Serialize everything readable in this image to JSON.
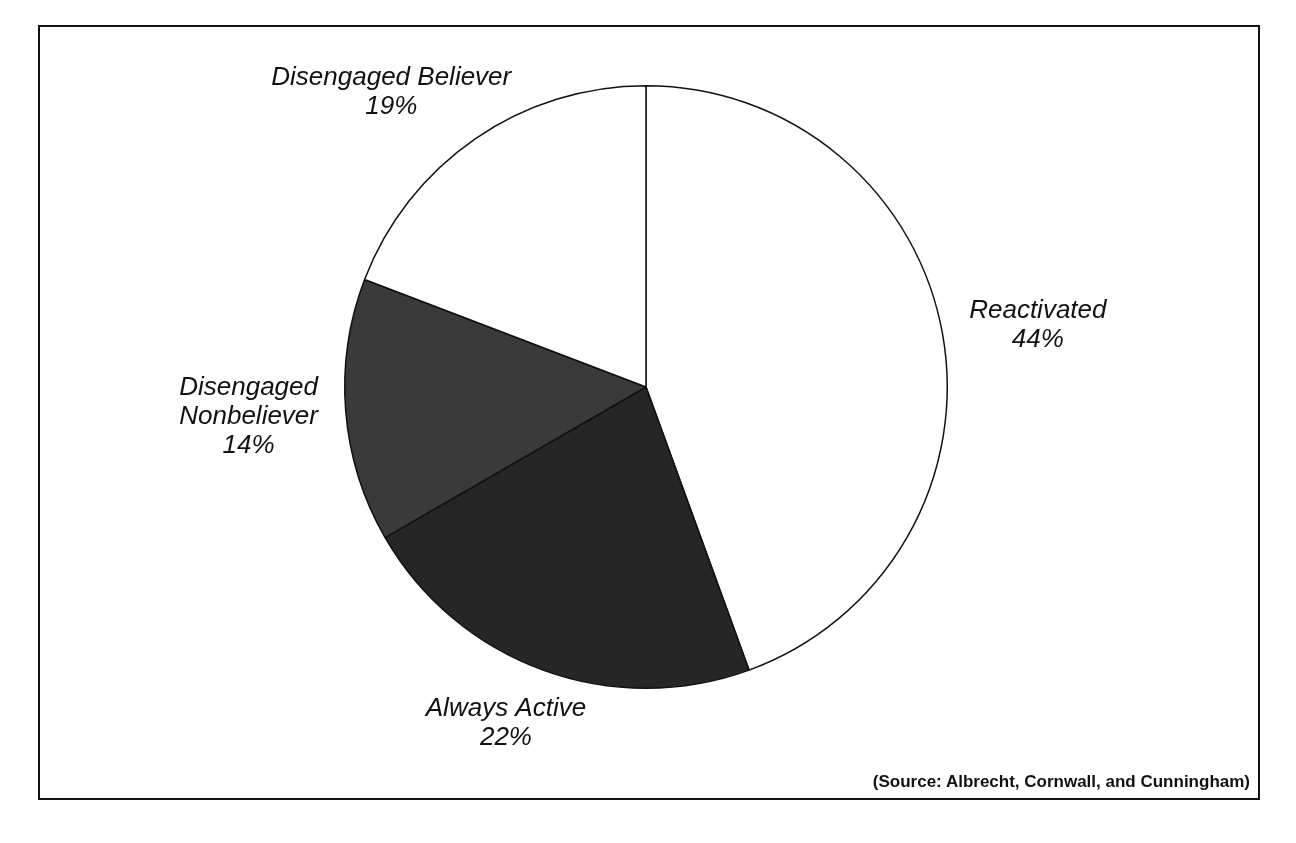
{
  "chart_data": {
    "type": "pie",
    "categories": [
      "Reactivated",
      "Always Active",
      "Disengaged Nonbeliever",
      "Disengaged Believer"
    ],
    "values": [
      44,
      22,
      14,
      19
    ],
    "value_labels": [
      "44%",
      "22%",
      "14%",
      "19%"
    ],
    "colors": [
      "#ffffff",
      "#262626",
      "#3a3a3a",
      "#ffffff"
    ],
    "data_labels": true,
    "legend": false,
    "source": "(Source: Albrecht, Cornwall, and Cunningham)"
  }
}
